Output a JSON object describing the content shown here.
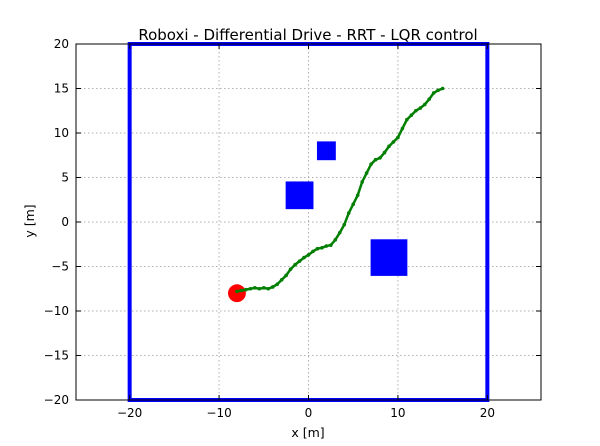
{
  "chart_data": {
    "type": "scatter",
    "title": "Roboxi - Differential Drive - RRT - LQR control",
    "xlabel": "x [m]",
    "ylabel": "y [m]",
    "xlim": [
      -26,
      26
    ],
    "ylim": [
      -20,
      20
    ],
    "xticks": [
      -20,
      -10,
      0,
      10,
      20
    ],
    "xtick_labels": [
      "−20",
      "−10",
      "0",
      "10",
      "20"
    ],
    "yticks": [
      -20,
      -15,
      -10,
      -5,
      0,
      5,
      10,
      15,
      20
    ],
    "ytick_labels": [
      "−20",
      "−15",
      "−10",
      "−5",
      "0",
      "5",
      "10",
      "15",
      "20"
    ],
    "grid": true,
    "boundary": {
      "x": [
        -20,
        20
      ],
      "y": [
        -20,
        20
      ],
      "color": "#0000ff"
    },
    "obstacles": [
      {
        "center": [
          -1,
          3
        ],
        "size": 3,
        "color": "#0000ff"
      },
      {
        "center": [
          2,
          8
        ],
        "size": 2,
        "color": "#0000ff"
      },
      {
        "center": [
          9,
          -4
        ],
        "size": 4,
        "color": "#0000ff"
      }
    ],
    "robot": {
      "center": [
        -8,
        -8
      ],
      "radius": 1,
      "color": "#ff0000"
    },
    "path": {
      "color": "#007f00",
      "x": [
        -8,
        -7.5,
        -7,
        -6.5,
        -6,
        -5.5,
        -5,
        -4.5,
        -4,
        -3.5,
        -3,
        -2.5,
        -2,
        -1.5,
        -1,
        -0.5,
        0,
        0.5,
        1,
        1.5,
        2,
        2.5,
        3,
        3.5,
        4,
        4.5,
        5,
        5.5,
        6,
        6.5,
        7,
        7.5,
        8,
        8.5,
        9,
        9.5,
        10,
        10.5,
        11,
        11.5,
        12,
        12.5,
        13,
        13.5,
        14,
        14.5,
        15
      ],
      "y": [
        -7.8,
        -7.7,
        -7.6,
        -7.5,
        -7.4,
        -7.5,
        -7.4,
        -7.5,
        -7.3,
        -7,
        -6.5,
        -6,
        -5.3,
        -4.8,
        -4.4,
        -4,
        -3.7,
        -3.3,
        -3,
        -2.9,
        -2.7,
        -2.6,
        -2,
        -1.2,
        -0.3,
        1,
        2,
        3,
        4.5,
        5.5,
        6.5,
        7,
        7.2,
        7.8,
        8.5,
        9,
        9.5,
        10.5,
        11.5,
        12,
        12.5,
        12.8,
        13.2,
        13.8,
        14.5,
        14.8,
        15
      ]
    }
  }
}
